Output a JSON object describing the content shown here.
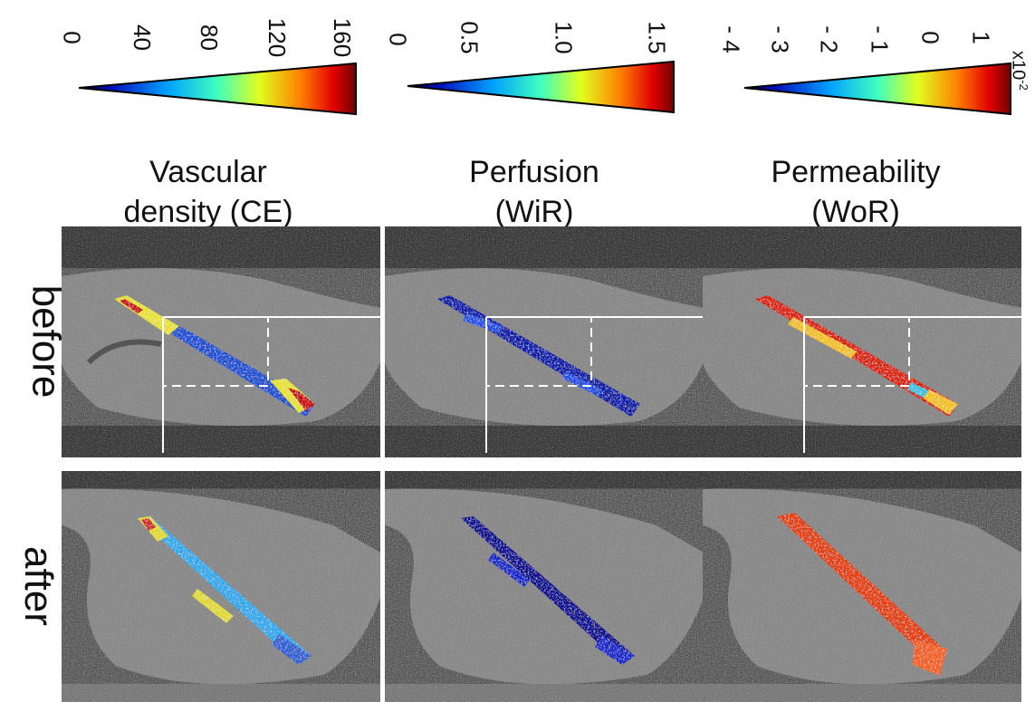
{
  "colorbars": [
    {
      "title_line1": "Vascular",
      "title_line2": "density (CE)",
      "ticks": [
        "0",
        "40",
        "80",
        "120",
        "160"
      ]
    },
    {
      "title_line1": "Perfusion",
      "title_line2": "(WiR)",
      "ticks": [
        "0",
        "0.5",
        "1.0",
        "1.5"
      ]
    },
    {
      "title_line1": "Permeability",
      "title_line2": "(WoR)",
      "ticks": [
        "- 4",
        "- 3",
        "- 2",
        "- 1",
        "0",
        "1"
      ],
      "exponent_base": "x10",
      "exponent_power": "-2"
    }
  ],
  "rows": [
    {
      "label": "before"
    },
    {
      "label": "after"
    }
  ],
  "colormap": "jet",
  "overlay_colors": {
    "ce_before": [
      "#1e4fd0",
      "#e6e030",
      "#c81010"
    ],
    "ce_after": [
      "#30a8e8",
      "#e0d830",
      "#3060d0"
    ],
    "wir_before": [
      "#0a1aa8",
      "#2050e0"
    ],
    "wir_after": [
      "#0a1090",
      "#1428c8"
    ],
    "wor_before": [
      "#d82010",
      "#f0c020",
      "#40c0e0"
    ],
    "wor_after": [
      "#e04010",
      "#f06020"
    ]
  }
}
